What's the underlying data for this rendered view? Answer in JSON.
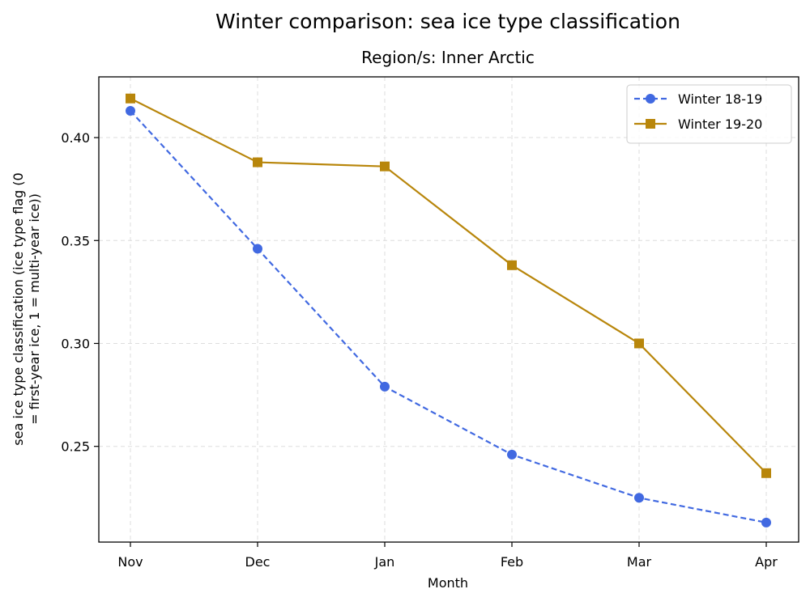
{
  "chart_data": {
    "type": "line",
    "title": "Winter comparison: sea ice type classification",
    "subtitle": "Region/s: Inner Arctic",
    "xlabel": "Month",
    "ylabel_line1": "sea ice type classification (ice type flag (0",
    "ylabel_line2": "= first-year ice, 1 = multi-year ice))",
    "categories": [
      "Nov",
      "Dec",
      "Jan",
      "Feb",
      "Mar",
      "Apr"
    ],
    "ylim": [
      0.2035,
      0.4295
    ],
    "yticks": [
      0.25,
      0.3,
      0.35,
      0.4
    ],
    "ytick_labels": [
      "0.25",
      "0.30",
      "0.35",
      "0.40"
    ],
    "grid": true,
    "legend_position": "top-right",
    "series": [
      {
        "name": "Winter 18-19",
        "values": [
          0.413,
          0.346,
          0.279,
          0.246,
          0.225,
          0.213
        ],
        "color": "#4169e1",
        "line_style": "dashed",
        "marker": "circle"
      },
      {
        "name": "Winter 19-20",
        "values": [
          0.419,
          0.388,
          0.386,
          0.338,
          0.3,
          0.237
        ],
        "color": "#b8860b",
        "line_style": "solid",
        "marker": "square"
      }
    ]
  }
}
